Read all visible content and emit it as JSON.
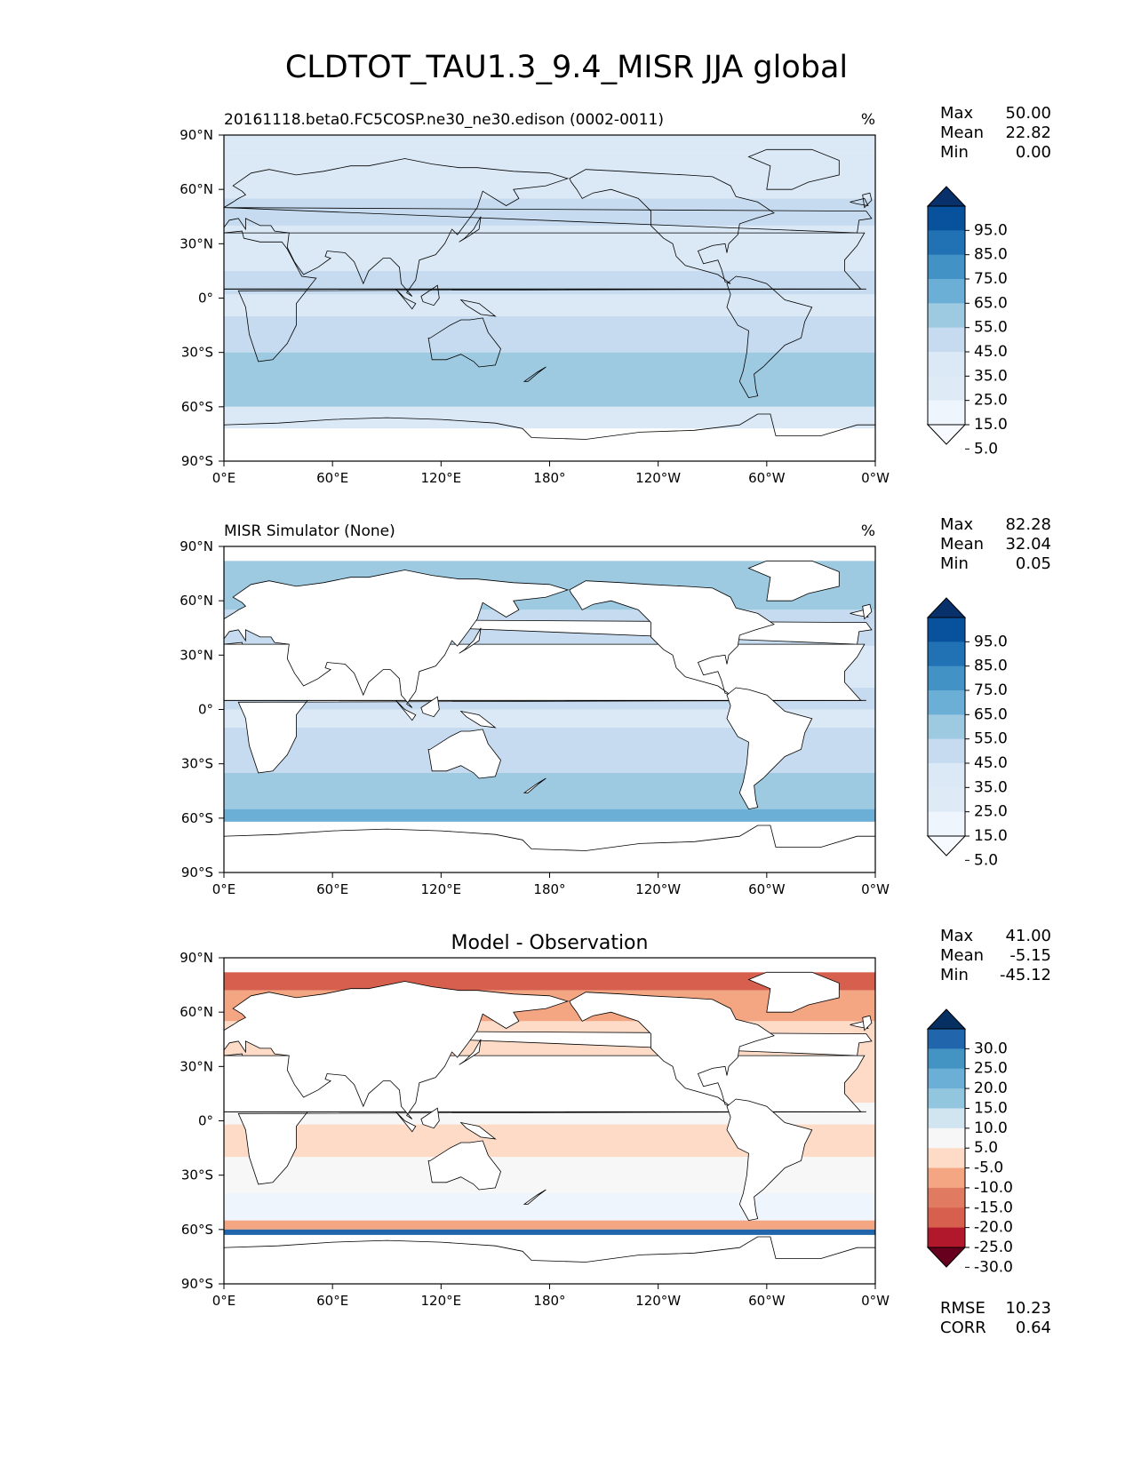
{
  "title": "CLDTOT_TAU1.3_9.4_MISR JJA global",
  "axes": {
    "lon_ticks": [
      "0°E",
      "60°E",
      "120°E",
      "180°",
      "120°W",
      "60°W",
      "0°W"
    ],
    "lat_ticks": [
      "90°N",
      "60°N",
      "30°N",
      "0°",
      "30°S",
      "60°S",
      "90°S"
    ]
  },
  "panels": [
    {
      "left_title": "20161118.beta0.FC5COSP.ne30_ne30.edison (0002-0011)",
      "center_title": "",
      "units": "%",
      "stats": [
        {
          "label": "Max",
          "value": "50.00"
        },
        {
          "label": "Mean",
          "value": "22.82"
        },
        {
          "label": "Min",
          "value": "0.00"
        }
      ],
      "colorbar_labels": [
        "95.0",
        "85.0",
        "75.0",
        "65.0",
        "55.0",
        "45.0",
        "35.0",
        "25.0",
        "15.0",
        "5.0"
      ],
      "colorbar_colors": [
        "#08306b",
        "#08519c",
        "#2171b5",
        "#4292c6",
        "#6baed6",
        "#9ecae1",
        "#c6dbef",
        "#dbe9f6",
        "#deebf7",
        "#eef5fc",
        "#f7fbff"
      ],
      "footer_stats": []
    },
    {
      "left_title": "MISR Simulator (None)",
      "center_title": "",
      "units": "%",
      "stats": [
        {
          "label": "Max",
          "value": "82.28"
        },
        {
          "label": "Mean",
          "value": "32.04"
        },
        {
          "label": "Min",
          "value": "0.05"
        }
      ],
      "colorbar_labels": [
        "95.0",
        "85.0",
        "75.0",
        "65.0",
        "55.0",
        "45.0",
        "35.0",
        "25.0",
        "15.0",
        "5.0"
      ],
      "colorbar_colors": [
        "#08306b",
        "#08519c",
        "#2171b5",
        "#4292c6",
        "#6baed6",
        "#9ecae1",
        "#c6dbef",
        "#dbe9f6",
        "#deebf7",
        "#eef5fc",
        "#f7fbff"
      ],
      "footer_stats": []
    },
    {
      "left_title": "",
      "center_title": "Model - Observation",
      "units": "",
      "stats": [
        {
          "label": "Max",
          "value": "41.00"
        },
        {
          "label": "Mean",
          "value": "-5.15"
        },
        {
          "label": "Min",
          "value": "-45.12"
        }
      ],
      "colorbar_labels": [
        "30.0",
        "25.0",
        "20.0",
        "15.0",
        "10.0",
        "5.0",
        "-5.0",
        "-10.0",
        "-15.0",
        "-20.0",
        "-25.0",
        "-30.0"
      ],
      "colorbar_colors": [
        "#053061",
        "#2166ac",
        "#4393c3",
        "#6baed6",
        "#92c5de",
        "#d1e5f0",
        "#f7f7f7",
        "#fddbc7",
        "#f4a582",
        "#e07b62",
        "#d6604d",
        "#b2182b",
        "#67001f"
      ],
      "footer_stats": [
        {
          "label": "RMSE",
          "value": "10.23"
        },
        {
          "label": "CORR",
          "value": "0.64"
        }
      ]
    }
  ],
  "chart_data": [
    {
      "type": "heatmap",
      "title": "20161118.beta0.FC5COSP.ne30_ne30.edison (0002-0011)",
      "units": "%",
      "x_range": [
        0,
        360
      ],
      "y_range": [
        -90,
        90
      ],
      "colorbar_levels": [
        5,
        15,
        25,
        35,
        45,
        55,
        65,
        75,
        85,
        95
      ],
      "colormap": "Blues",
      "max": 50.0,
      "mean": 22.82,
      "min": 0.0
    },
    {
      "type": "heatmap",
      "title": "MISR Simulator (None)",
      "units": "%",
      "x_range": [
        0,
        360
      ],
      "y_range": [
        -90,
        90
      ],
      "colorbar_levels": [
        5,
        15,
        25,
        35,
        45,
        55,
        65,
        75,
        85,
        95
      ],
      "colormap": "Blues",
      "max": 82.28,
      "mean": 32.04,
      "min": 0.05
    },
    {
      "type": "heatmap",
      "title": "Model - Observation",
      "x_range": [
        0,
        360
      ],
      "y_range": [
        -90,
        90
      ],
      "colorbar_levels": [
        -30,
        -25,
        -20,
        -15,
        -10,
        -5,
        5,
        10,
        15,
        20,
        25,
        30
      ],
      "colormap": "RdBu_r",
      "max": 41.0,
      "mean": -5.15,
      "min": -45.12,
      "rmse": 10.23,
      "corr": 0.64
    }
  ]
}
